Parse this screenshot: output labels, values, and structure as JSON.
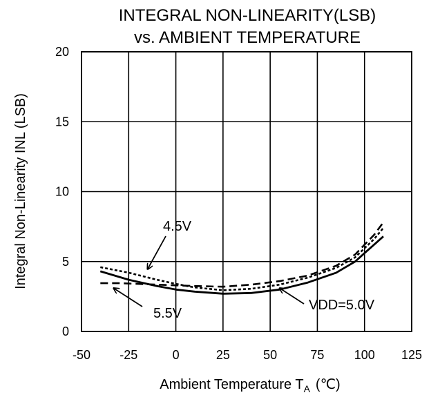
{
  "chart_data": {
    "type": "line",
    "title": [
      "INTEGRAL NON-LINEARITY(LSB)",
      "vs. AMBIENT TEMPERATURE"
    ],
    "xlabel": {
      "main": "Ambient Temperature  T",
      "sub": "A",
      "unit": "(℃)"
    },
    "ylabel": "Integral Non-Linearity  INL (LSB)",
    "xlim": [
      -50,
      125
    ],
    "ylim": [
      0,
      20
    ],
    "xticks": [
      -50,
      -25,
      0,
      25,
      50,
      75,
      100,
      125
    ],
    "yticks": [
      0,
      5,
      10,
      15,
      20
    ],
    "grid": true,
    "series": [
      {
        "name": "VDD=5.0V",
        "style": "solid",
        "x": [
          -40,
          -25,
          -10,
          0,
          10,
          25,
          40,
          55,
          70,
          85,
          95,
          100,
          105,
          110
        ],
        "y": [
          4.3,
          3.7,
          3.25,
          3.0,
          2.85,
          2.7,
          2.75,
          3.0,
          3.5,
          4.2,
          5.0,
          5.6,
          6.2,
          6.8
        ]
      },
      {
        "name": "4.5V",
        "style": "dotted",
        "x": [
          -40,
          -25,
          -10,
          0,
          10,
          25,
          40,
          55,
          70,
          85,
          95,
          100,
          105,
          110
        ],
        "y": [
          4.6,
          4.2,
          3.7,
          3.4,
          3.15,
          2.95,
          3.05,
          3.35,
          3.85,
          4.55,
          5.3,
          5.95,
          6.6,
          7.4
        ]
      },
      {
        "name": "5.5V",
        "style": "dashed",
        "x": [
          -40,
          -30,
          -20,
          -10,
          0,
          10,
          25,
          40,
          55,
          70,
          85,
          95,
          100,
          105,
          110
        ],
        "y": [
          3.45,
          3.45,
          3.4,
          3.35,
          3.3,
          3.25,
          3.2,
          3.35,
          3.6,
          4.0,
          4.7,
          5.5,
          6.2,
          6.9,
          7.8
        ]
      }
    ],
    "annotations": [
      {
        "text": "4.5V",
        "series": "4.5V",
        "at": [
          -15,
          4.45
        ]
      },
      {
        "text": "5.5V",
        "series": "5.5V",
        "at": [
          -33,
          3.1
        ]
      },
      {
        "text": "VDD=5.0V",
        "series": "VDD=5.0V",
        "at": [
          55,
          3.1
        ]
      }
    ]
  }
}
